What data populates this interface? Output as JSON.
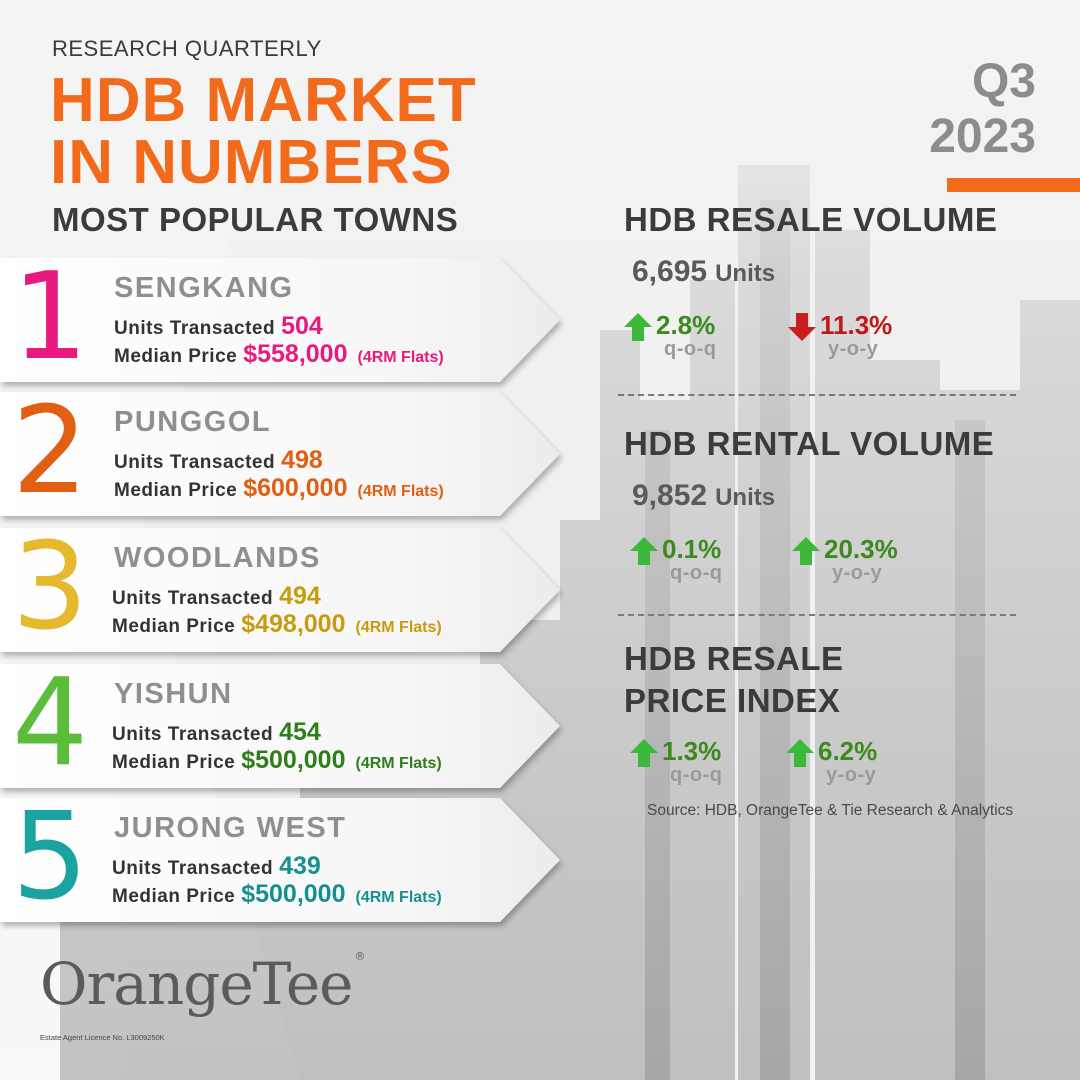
{
  "header": {
    "kicker": "RESEARCH QUARTERLY",
    "title_line1": "HDB MARKET",
    "title_line2": "IN NUMBERS",
    "quarter": "Q3",
    "year": "2023",
    "accent_color": "#f26b1d"
  },
  "popular_towns": {
    "title": "MOST POPULAR TOWNS",
    "units_label": "Units Transacted",
    "price_label": "Median Price",
    "items": [
      {
        "rank": "1",
        "name": "SENGKANG",
        "units": "504",
        "price": "$558,000",
        "note": "(4RM Flats)",
        "color": "#e8197f"
      },
      {
        "rank": "2",
        "name": "PUNGGOL",
        "units": "498",
        "price": "$600,000",
        "note": "(4RM Flats)",
        "color": "#e05f13"
      },
      {
        "rank": "3",
        "name": "WOODLANDS",
        "units": "494",
        "price": "$498,000",
        "note": "(4RM Flats)",
        "color": "#e6b82e",
        "value_color": "#c99b0e"
      },
      {
        "rank": "4",
        "name": "YISHUN",
        "units": "454",
        "price": "$500,000",
        "note": "(4RM Flats)",
        "color": "#5bbd3a",
        "value_color": "#2f7d1c"
      },
      {
        "rank": "5",
        "name": "JURONG WEST",
        "units": "439",
        "price": "$500,000",
        "note": "(4RM Flats)",
        "color": "#1aa3a0",
        "value_color": "#16908e"
      }
    ]
  },
  "resale_volume": {
    "title": "HDB RESALE VOLUME",
    "value": "6,695",
    "unit": "Units",
    "qoq": {
      "direction": "up",
      "value": "2.8%",
      "period": "q-o-q"
    },
    "yoy": {
      "direction": "down",
      "value": "11.3%",
      "period": "y-o-y"
    }
  },
  "rental_volume": {
    "title": "HDB RENTAL VOLUME",
    "value": "9,852",
    "unit": "Units",
    "qoq": {
      "direction": "up",
      "value": "0.1%",
      "period": "q-o-q"
    },
    "yoy": {
      "direction": "up",
      "value": "20.3%",
      "period": "y-o-y"
    }
  },
  "price_index": {
    "title_line1": "HDB RESALE",
    "title_line2": "PRICE INDEX",
    "qoq": {
      "direction": "up",
      "value": "1.3%",
      "period": "q-o-q"
    },
    "yoy": {
      "direction": "up",
      "value": "6.2%",
      "period": "y-o-y"
    }
  },
  "source": "Source: HDB, OrangeTee  & Tie Research & Analytics",
  "footer": {
    "logo_text": "OrangeTee",
    "logo_mark": "®",
    "licence": "Estate Agent Licence No. L3009250K"
  },
  "colors": {
    "up_arrow": "#3cb83a",
    "down_arrow": "#c81e1e",
    "up_text": "#3c8a1e",
    "down_text": "#c01818"
  }
}
